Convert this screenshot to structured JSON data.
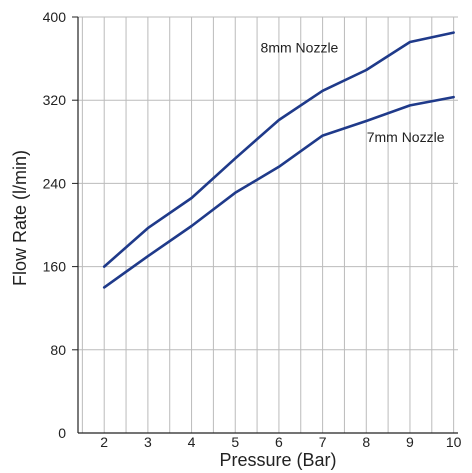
{
  "chart_data": {
    "type": "line",
    "title": "",
    "xlabel": "Pressure (Bar)",
    "ylabel": "Flow Rate (l/min)",
    "xlim": [
      1.4,
      10.1
    ],
    "ylim": [
      0,
      400
    ],
    "x_ticks": [
      2,
      3,
      4,
      5,
      6,
      7,
      8,
      9,
      10
    ],
    "y_ticks": [
      0,
      80,
      160,
      240,
      320,
      400
    ],
    "grid": true,
    "colors": {
      "series": "#1f3a8a",
      "grid": "#bbbbbb",
      "axis": "#222222"
    },
    "series": [
      {
        "name": "8mm Nozzle",
        "x": [
          2,
          3,
          4,
          5,
          6,
          7,
          8,
          9,
          10
        ],
        "values": [
          160,
          197,
          226,
          264,
          301,
          329,
          349,
          376,
          385
        ]
      },
      {
        "name": "7mm Nozzle",
        "x": [
          2,
          3,
          4,
          5,
          6,
          7,
          8,
          9,
          10
        ],
        "values": [
          140,
          170,
          199,
          231,
          256,
          286,
          300,
          315,
          323
        ]
      }
    ]
  }
}
